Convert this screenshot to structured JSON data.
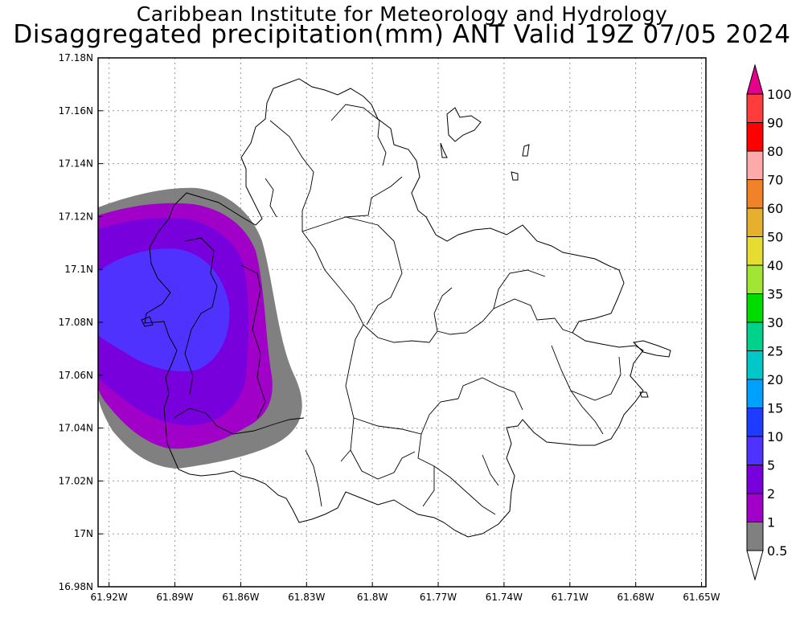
{
  "title": {
    "line1": "Caribbean Institute for Meteorology and Hydrology",
    "line2": "Disaggregated precipitation(mm) ANT Valid 19Z 07/05 2024"
  },
  "map": {
    "lon_range": [
      -61.925,
      -61.648
    ],
    "lat_range": [
      16.98,
      17.18
    ],
    "x_ticks": [
      {
        "value": -61.92,
        "label": "61.92W"
      },
      {
        "value": -61.89,
        "label": "61.89W"
      },
      {
        "value": -61.86,
        "label": "61.86W"
      },
      {
        "value": -61.83,
        "label": "61.83W"
      },
      {
        "value": -61.8,
        "label": "61.8W"
      },
      {
        "value": -61.77,
        "label": "61.77W"
      },
      {
        "value": -61.74,
        "label": "61.74W"
      },
      {
        "value": -61.71,
        "label": "61.71W"
      },
      {
        "value": -61.68,
        "label": "61.68W"
      },
      {
        "value": -61.65,
        "label": "61.65W"
      }
    ],
    "y_ticks": [
      {
        "value": 17.18,
        "label": "17.18N"
      },
      {
        "value": 17.16,
        "label": "17.16N"
      },
      {
        "value": 17.14,
        "label": "17.14N"
      },
      {
        "value": 17.12,
        "label": "17.12N"
      },
      {
        "value": 17.1,
        "label": "17.1N"
      },
      {
        "value": 17.08,
        "label": "17.08N"
      },
      {
        "value": 17.06,
        "label": "17.06N"
      },
      {
        "value": 17.04,
        "label": "17.04N"
      },
      {
        "value": 17.02,
        "label": "17.02N"
      },
      {
        "value": 17.0,
        "label": "17N"
      },
      {
        "value": 16.98,
        "label": "16.98N"
      }
    ],
    "grid": true
  },
  "legend": {
    "levels": [
      {
        "label": "0.5",
        "color": "#ffffff"
      },
      {
        "label": "1",
        "color": "#808080"
      },
      {
        "label": "2",
        "color": "#a000c8"
      },
      {
        "label": "5",
        "color": "#7800dc"
      },
      {
        "label": "10",
        "color": "#5032ff"
      },
      {
        "label": "15",
        "color": "#1e3cff"
      },
      {
        "label": "20",
        "color": "#00a0ff"
      },
      {
        "label": "25",
        "color": "#00c8c8"
      },
      {
        "label": "30",
        "color": "#00d28c"
      },
      {
        "label": "35",
        "color": "#00dc00"
      },
      {
        "label": "40",
        "color": "#a0e632"
      },
      {
        "label": "50",
        "color": "#e6dc32"
      },
      {
        "label": "60",
        "color": "#e6af2d"
      },
      {
        "label": "70",
        "color": "#f08228"
      },
      {
        "label": "80",
        "color": "#ffaaaa"
      },
      {
        "label": "90",
        "color": "#ff0000"
      },
      {
        "label": "100",
        "color": "#ff3c3c"
      }
    ],
    "over_color": "#e6008c"
  }
}
